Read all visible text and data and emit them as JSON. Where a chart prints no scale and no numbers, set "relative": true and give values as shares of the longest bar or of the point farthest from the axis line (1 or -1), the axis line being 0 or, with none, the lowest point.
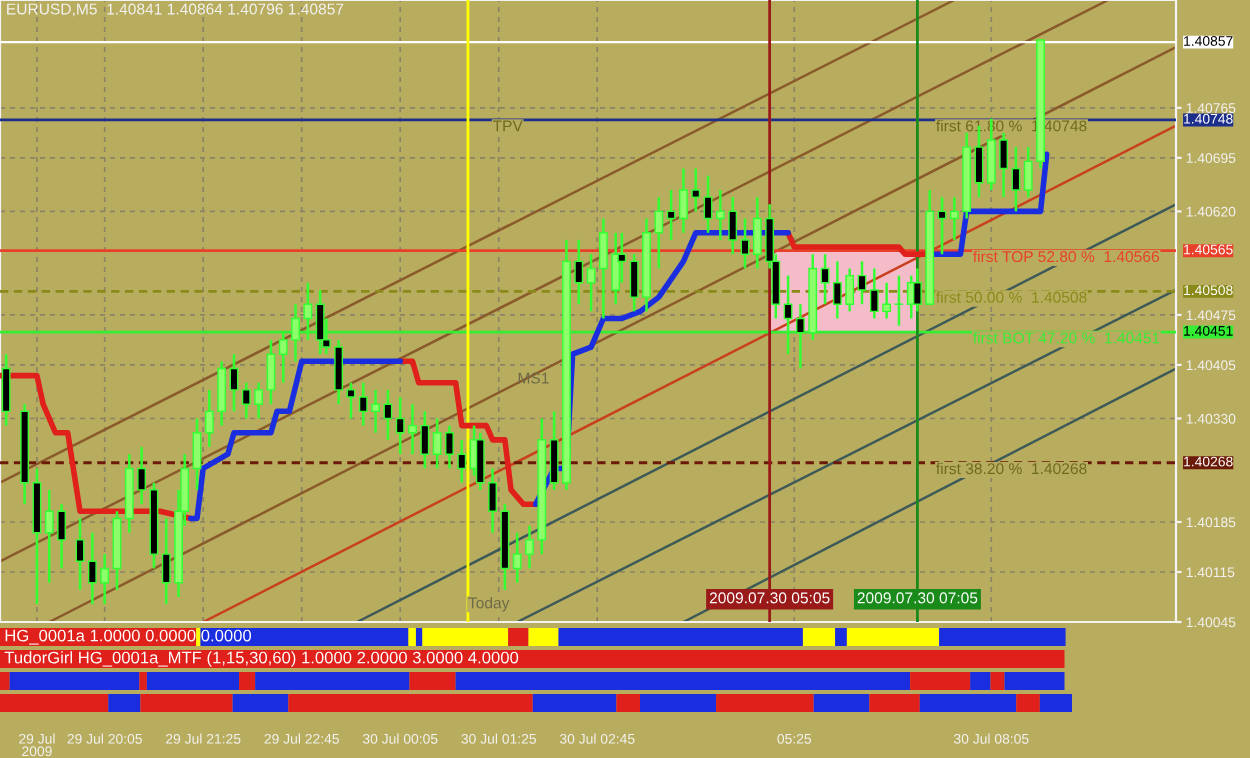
{
  "chart_data": [
    {
      "type": "candlestick",
      "title": "EURUSD,M5  1.40841 1.40864 1.40796 1.40857",
      "x": [
        "2009-07-29T18:45",
        "2009-07-29T19:00",
        "2009-07-29T19:10",
        "2009-07-29T19:20",
        "2009-07-29T19:30",
        "2009-07-29T19:45",
        "2009-07-29T19:55",
        "2009-07-29T20:05",
        "2009-07-29T20:15",
        "2009-07-29T20:25",
        "2009-07-29T20:35",
        "2009-07-29T20:45",
        "2009-07-29T20:55",
        "2009-07-29T21:05",
        "2009-07-29T21:10",
        "2009-07-29T21:20",
        "2009-07-29T21:30",
        "2009-07-29T21:40",
        "2009-07-29T21:50",
        "2009-07-29T22:00",
        "2009-07-29T22:10",
        "2009-07-29T22:20",
        "2009-07-29T22:30",
        "2009-07-29T22:40",
        "2009-07-29T22:50",
        "2009-07-29T23:00",
        "2009-07-29T23:05",
        "2009-07-29T23:15",
        "2009-07-29T23:25",
        "2009-07-29T23:35",
        "2009-07-29T23:45",
        "2009-07-29T23:55",
        "2009-07-30T00:05",
        "2009-07-30T00:15",
        "2009-07-30T00:25",
        "2009-07-30T00:35",
        "2009-07-30T00:45",
        "2009-07-30T00:55",
        "2009-07-30T01:05",
        "2009-07-30T01:10",
        "2009-07-30T01:20",
        "2009-07-30T01:30",
        "2009-07-30T01:40",
        "2009-07-30T01:50",
        "2009-07-30T02:00",
        "2009-07-30T02:10",
        "2009-07-30T02:20",
        "2009-07-30T02:30",
        "2009-07-30T02:40",
        "2009-07-30T02:50",
        "2009-07-30T03:00",
        "2009-07-30T03:05",
        "2009-07-30T03:15",
        "2009-07-30T03:25",
        "2009-07-30T03:35",
        "2009-07-30T03:45",
        "2009-07-30T03:55",
        "2009-07-30T04:05",
        "2009-07-30T04:15",
        "2009-07-30T04:25",
        "2009-07-30T04:35",
        "2009-07-30T04:45",
        "2009-07-30T04:55",
        "2009-07-30T05:05",
        "2009-07-30T05:10",
        "2009-07-30T05:20",
        "2009-07-30T05:30",
        "2009-07-30T05:40",
        "2009-07-30T05:50",
        "2009-07-30T06:00",
        "2009-07-30T06:10",
        "2009-07-30T06:20",
        "2009-07-30T06:30",
        "2009-07-30T06:40",
        "2009-07-30T06:50",
        "2009-07-30T07:00",
        "2009-07-30T07:05",
        "2009-07-30T07:15",
        "2009-07-30T07:25",
        "2009-07-30T07:35",
        "2009-07-30T07:45",
        "2009-07-30T07:55",
        "2009-07-30T08:05",
        "2009-07-30T08:15",
        "2009-07-30T08:25",
        "2009-07-30T08:35",
        "2009-07-30T08:45"
      ],
      "ohlc": [
        [
          1.404,
          1.4042,
          1.4032,
          1.4034
        ],
        [
          1.4034,
          1.4035,
          1.4021,
          1.4024
        ],
        [
          1.4024,
          1.4026,
          1.4007,
          1.4017
        ],
        [
          1.4017,
          1.4023,
          1.401,
          1.402
        ],
        [
          1.402,
          1.4021,
          1.4012,
          1.4016
        ],
        [
          1.4016,
          1.4019,
          1.4009,
          1.4013
        ],
        [
          1.4013,
          1.4017,
          1.4007,
          1.401
        ],
        [
          1.401,
          1.4014,
          1.4007,
          1.4012
        ],
        [
          1.4012,
          1.402,
          1.4009,
          1.4019
        ],
        [
          1.4019,
          1.4028,
          1.4017,
          1.4026
        ],
        [
          1.4026,
          1.4029,
          1.4021,
          1.4023
        ],
        [
          1.4023,
          1.4024,
          1.4012,
          1.4014
        ],
        [
          1.4014,
          1.4019,
          1.4007,
          1.401
        ],
        [
          1.401,
          1.4023,
          1.4008,
          1.402
        ],
        [
          1.402,
          1.4028,
          1.4018,
          1.4026
        ],
        [
          1.4026,
          1.4033,
          1.4023,
          1.4031
        ],
        [
          1.4031,
          1.4037,
          1.4029,
          1.4034
        ],
        [
          1.4034,
          1.4041,
          1.4032,
          1.404
        ],
        [
          1.404,
          1.4042,
          1.4034,
          1.4037
        ],
        [
          1.4037,
          1.4038,
          1.4033,
          1.4035
        ],
        [
          1.4035,
          1.4038,
          1.4033,
          1.4037
        ],
        [
          1.4037,
          1.4044,
          1.4035,
          1.4042
        ],
        [
          1.4042,
          1.4045,
          1.4038,
          1.4044
        ],
        [
          1.4044,
          1.4049,
          1.4041,
          1.4047
        ],
        [
          1.4047,
          1.4052,
          1.4044,
          1.4049
        ],
        [
          1.4049,
          1.4051,
          1.4042,
          1.4044
        ],
        [
          1.4044,
          1.4047,
          1.4042,
          1.4043
        ],
        [
          1.4043,
          1.4044,
          1.4035,
          1.4037
        ],
        [
          1.4037,
          1.4038,
          1.4033,
          1.4036
        ],
        [
          1.4036,
          1.4038,
          1.4032,
          1.4034
        ],
        [
          1.4034,
          1.4037,
          1.4031,
          1.4035
        ],
        [
          1.4035,
          1.4037,
          1.403,
          1.4033
        ],
        [
          1.4033,
          1.4036,
          1.4028,
          1.4031
        ],
        [
          1.4031,
          1.4035,
          1.4028,
          1.4032
        ],
        [
          1.4032,
          1.4034,
          1.4026,
          1.4028
        ],
        [
          1.4028,
          1.4033,
          1.4026,
          1.4031
        ],
        [
          1.4031,
          1.4032,
          1.4026,
          1.4028
        ],
        [
          1.4028,
          1.403,
          1.4024,
          1.4026
        ],
        [
          1.4026,
          1.4032,
          1.4025,
          1.403
        ],
        [
          1.403,
          1.4031,
          1.4023,
          1.4024
        ],
        [
          1.4024,
          1.4026,
          1.4017,
          1.402
        ],
        [
          1.402,
          1.4021,
          1.4009,
          1.4012
        ],
        [
          1.4012,
          1.4017,
          1.401,
          1.4014
        ],
        [
          1.4014,
          1.4018,
          1.4012,
          1.4016
        ],
        [
          1.4016,
          1.4033,
          1.4014,
          1.403
        ],
        [
          1.403,
          1.4034,
          1.4023,
          1.4024
        ],
        [
          1.4024,
          1.4058,
          1.4023,
          1.4055
        ],
        [
          1.4055,
          1.4058,
          1.4049,
          1.4052
        ],
        [
          1.4052,
          1.4056,
          1.4048,
          1.4054
        ],
        [
          1.4054,
          1.4061,
          1.4047,
          1.4059
        ],
        [
          1.4051,
          1.4059,
          1.4049,
          1.4056
        ],
        [
          1.4056,
          1.4059,
          1.4052,
          1.4055
        ],
        [
          1.4055,
          1.4056,
          1.4048,
          1.405
        ],
        [
          1.405,
          1.4061,
          1.4048,
          1.4059
        ],
        [
          1.4059,
          1.4064,
          1.4054,
          1.4062
        ],
        [
          1.4062,
          1.4065,
          1.4058,
          1.4061
        ],
        [
          1.4061,
          1.4068,
          1.4059,
          1.4065
        ],
        [
          1.4065,
          1.4068,
          1.4062,
          1.4064
        ],
        [
          1.4064,
          1.4067,
          1.4059,
          1.4061
        ],
        [
          1.4061,
          1.4065,
          1.4058,
          1.4062
        ],
        [
          1.4062,
          1.4064,
          1.4056,
          1.4058
        ],
        [
          1.4058,
          1.4061,
          1.4054,
          1.4056
        ],
        [
          1.4056,
          1.4064,
          1.4054,
          1.4061
        ],
        [
          1.4061,
          1.4063,
          1.4054,
          1.4055
        ],
        [
          1.4055,
          1.4056,
          1.4047,
          1.4049
        ],
        [
          1.4049,
          1.4053,
          1.4042,
          1.4047
        ],
        [
          1.4047,
          1.4049,
          1.404,
          1.4045
        ],
        [
          1.4045,
          1.4056,
          1.4044,
          1.4054
        ],
        [
          1.4054,
          1.4056,
          1.4049,
          1.4052
        ],
        [
          1.4052,
          1.4055,
          1.4047,
          1.4049
        ],
        [
          1.4049,
          1.4054,
          1.4048,
          1.4053
        ],
        [
          1.4053,
          1.4055,
          1.4049,
          1.4051
        ],
        [
          1.4051,
          1.4054,
          1.4047,
          1.4048
        ],
        [
          1.4048,
          1.4052,
          1.4047,
          1.4049
        ],
        [
          1.4049,
          1.4053,
          1.4046,
          1.4049
        ],
        [
          1.4049,
          1.4053,
          1.4047,
          1.4052
        ],
        [
          1.4052,
          1.4054,
          1.4048,
          1.4049
        ],
        [
          1.4049,
          1.4065,
          1.4049,
          1.4062
        ],
        [
          1.4062,
          1.4064,
          1.4056,
          1.4061
        ],
        [
          1.4061,
          1.4064,
          1.4058,
          1.4062
        ],
        [
          1.4062,
          1.4073,
          1.4061,
          1.4071
        ],
        [
          1.4071,
          1.4074,
          1.4064,
          1.4066
        ],
        [
          1.4066,
          1.4075,
          1.4065,
          1.4072
        ],
        [
          1.4072,
          1.4073,
          1.4064,
          1.4068
        ],
        [
          1.4068,
          1.4071,
          1.4062,
          1.4065
        ],
        [
          1.4065,
          1.4071,
          1.4064,
          1.4069
        ],
        [
          1.4069,
          1.4086,
          1.4068,
          1.4086
        ]
      ],
      "series": [
        {
          "type": "line",
          "color": "#e0201a",
          "x": [
            "2009-07-29T18:40",
            "2009-07-29T19:10",
            "2009-07-29T19:15",
            "2009-07-29T19:25",
            "2009-07-29T19:35",
            "2009-07-29T19:45",
            "2009-07-29T19:50",
            "2009-07-29T20:50",
            "2009-07-29T21:15",
            "2009-07-29T22:40",
            "2009-07-30T00:05",
            "2009-07-30T00:15",
            "2009-07-30T00:20",
            "2009-07-30T00:50",
            "2009-07-30T00:55",
            "2009-07-30T01:15",
            "2009-07-30T01:20",
            "2009-07-30T01:30",
            "2009-07-30T01:35",
            "2009-07-30T01:45",
            "2009-07-30T01:55",
            "2009-07-30T03:30",
            "2009-07-30T05:20",
            "2009-07-30T05:25",
            "2009-07-30T06:50",
            "2009-07-30T06:55",
            "2009-07-30T07:15"
          ],
          "values": [
            1.4039,
            1.4039,
            1.4035,
            1.4031,
            1.4031,
            1.402,
            1.402,
            1.402,
            1.4019,
            null,
            1.4041,
            1.4041,
            1.4038,
            1.4038,
            1.4032,
            1.4032,
            1.403,
            1.403,
            1.4023,
            1.4021,
            1.4021,
            null,
            1.4059,
            1.4057,
            1.4057,
            1.4056,
            1.4056
          ]
        },
        {
          "type": "line",
          "color": "#1a2ee0",
          "x": [
            "2009-07-29T21:15",
            "2009-07-29T21:20",
            "2009-07-29T21:25",
            "2009-07-29T21:45",
            "2009-07-29T21:50",
            "2009-07-29T22:20",
            "2009-07-29T22:25",
            "2009-07-29T22:35",
            "2009-07-29T22:45",
            "2009-07-30T00:05",
            "2009-07-30T01:05",
            "2009-07-30T01:55",
            "2009-07-30T02:10",
            "2009-07-30T02:20",
            "2009-07-30T02:25",
            "2009-07-30T02:40",
            "2009-07-30T02:50",
            "2009-07-30T03:05",
            "2009-07-30T03:20",
            "2009-07-30T03:35",
            "2009-07-30T03:55",
            "2009-07-30T04:05",
            "2009-07-30T04:25",
            "2009-07-30T05:20",
            "2009-07-30T06:10",
            "2009-07-30T07:15",
            "2009-07-30T07:40",
            "2009-07-30T07:45",
            "2009-07-30T08:45",
            "2009-07-30T08:50"
          ],
          "values": [
            1.4019,
            1.4019,
            1.4026,
            1.4028,
            1.4031,
            1.4031,
            1.4034,
            1.4034,
            1.4041,
            1.4041,
            null,
            1.4021,
            1.4026,
            1.4026,
            1.4042,
            1.4043,
            1.4047,
            1.4047,
            1.4048,
            1.405,
            1.4055,
            1.4059,
            1.4059,
            1.4059,
            null,
            1.4056,
            1.4056,
            1.4062,
            1.4062,
            1.407
          ]
        },
        {
          "type": "line",
          "color": "#8b5a2b",
          "x": [
            "2009-07-29T18:40",
            "2009-07-30T07:35"
          ],
          "values": [
            1.4024,
            1.40916
          ]
        },
        {
          "type": "line",
          "color": "#8b5a2b",
          "x": [
            "2009-07-29T18:40",
            "2009-07-30T09:40"
          ],
          "values": [
            1.4013,
            1.40916
          ]
        },
        {
          "type": "line",
          "color": "#8b5a2b",
          "x": [
            "2009-07-29T19:20",
            "2009-07-30T10:35"
          ],
          "values": [
            1.40045,
            1.4085
          ]
        },
        {
          "type": "line",
          "color": "#c8401e",
          "x": [
            "2009-07-29T21:25",
            "2009-07-30T10:35"
          ],
          "values": [
            1.40045,
            1.4074
          ]
        },
        {
          "type": "line",
          "color": "#3e5a58",
          "x": [
            "2009-07-29T23:30",
            "2009-07-30T10:35"
          ],
          "values": [
            1.40045,
            1.4063
          ]
        },
        {
          "type": "line",
          "color": "#3e5a58",
          "x": [
            "2009-07-30T01:40",
            "2009-07-30T10:35"
          ],
          "values": [
            1.40045,
            1.4051
          ]
        },
        {
          "type": "line",
          "color": "#3e5a58",
          "x": [
            "2009-07-30T03:55",
            "2009-07-30T10:35"
          ],
          "values": [
            1.40045,
            1.404
          ]
        }
      ],
      "xlim": [
        "2009-07-29T18:40",
        "2009-07-30T10:35"
      ],
      "ylim": [
        1.40045,
        1.40916
      ],
      "xticks": [
        {
          "value": "2009-07-29T19:10",
          "label": "29 Jul 2009"
        },
        {
          "value": "2009-07-29T20:05",
          "label": "29 Jul 20:05"
        },
        {
          "value": "2009-07-29T21:25",
          "label": "29 Jul 21:25"
        },
        {
          "value": "2009-07-29T22:45",
          "label": "29 Jul 22:45"
        },
        {
          "value": "2009-07-30T00:05",
          "label": "30 Jul 00:05"
        },
        {
          "value": "2009-07-30T01:25",
          "label": "30 Jul 01:25"
        },
        {
          "value": "2009-07-30T02:45",
          "label": "30 Jul 02:45"
        },
        {
          "value": "2009-07-30T05:25",
          "label": "05:25"
        },
        {
          "value": "2009-07-30T08:05",
          "label": "30 Jul 08:05"
        }
      ],
      "yticks": [
        {
          "value": 1.40765,
          "label": "1.40765"
        },
        {
          "value": 1.40695,
          "label": "1.40695"
        },
        {
          "value": 1.4062,
          "label": "1.40620"
        },
        {
          "value": 1.40475,
          "label": "1.40475"
        },
        {
          "value": 1.40405,
          "label": "1.40405"
        },
        {
          "value": 1.4033,
          "label": "1.40330"
        },
        {
          "value": 1.40185,
          "label": "1.40185"
        },
        {
          "value": 1.40115,
          "label": "1.40115"
        },
        {
          "value": 1.40045,
          "label": "1.40045"
        }
      ],
      "grid": true,
      "ref_lines": [
        {
          "axis": "y",
          "value": 1.40857,
          "label": "1.40857",
          "color": "#ffffff",
          "line_style": "solid"
        },
        {
          "axis": "y",
          "value": 1.40748,
          "label": "1.40748",
          "color": "#1c2f8c",
          "line_style": "solid"
        },
        {
          "axis": "y",
          "value": 1.40565,
          "label": "1.40565",
          "color": "#e8402a",
          "line_style": "solid"
        },
        {
          "axis": "y",
          "value": 1.40508,
          "label": "1.40508",
          "color": "#8a8a1a",
          "line_style": "dashed"
        },
        {
          "axis": "y",
          "value": 1.40451,
          "label": "1.40451",
          "color": "#33ee33",
          "line_style": "solid"
        },
        {
          "axis": "y",
          "value": 1.40268,
          "label": "1.40268",
          "color": "#6b1a0a",
          "line_style": "dashed"
        },
        {
          "axis": "x",
          "value": "2009-07-30T01:00",
          "color": "#ffff00",
          "line_style": "solid"
        },
        {
          "axis": "x",
          "value": "2009-07-30T05:05",
          "label": "2009.07.30 05:05",
          "color": "#9a1a1a",
          "line_style": "solid"
        },
        {
          "axis": "x",
          "value": "2009-07-30T07:05",
          "label": "2009.07.30 07:05",
          "color": "#1a8a1a",
          "line_style": "solid"
        }
      ],
      "annotations": [
        {
          "text": "first 61.80 %  1.40748",
          "x": "2009-07-30T07:20",
          "y": 1.40748
        },
        {
          "text": "first TOP 52.80 %  1.40566",
          "x": "2009-07-30T07:50",
          "y": 1.40565
        },
        {
          "text": "first 50.00 %  1.40508",
          "x": "2009-07-30T07:20",
          "y": 1.40508
        },
        {
          "text": "first BOT 47.20 %  1.40451",
          "x": "2009-07-30T07:50",
          "y": 1.40451
        },
        {
          "text": "first 38.20 %  1.40268",
          "x": "2009-07-30T07:20",
          "y": 1.40268
        },
        {
          "text": "TPV",
          "x": "2009-07-30T01:20",
          "y": 1.40748
        },
        "MS1",
        {
          "text": "Today",
          "x": "2009-07-30T01:00",
          "y": 1.4008
        }
      ]
    },
    {
      "type": "bar",
      "orientation": "horizontal",
      "stacked": true,
      "relative": true,
      "categories": [
        null,
        null,
        null,
        null
      ],
      "annotations": [
        "HG_0001a 1.0000 0.0000 0.0000",
        "TudorGirl HG_0001a_MTF (1,15,30,60) 1.0000 2.0000 3.0000 4.0000"
      ],
      "series": [
        {
          "values": [
            0.183,
            0.993,
            0.009,
            0.101
          ],
          "colors": [
            "#e0201a",
            "#e0201a",
            "#e0201a",
            "#e0201a"
          ]
        },
        {
          "values": [
            0.004,
            null,
            0.121,
            0.03
          ],
          "colors": [
            "#ffff00",
            null,
            "#1a2ee0",
            "#1a2ee0"
          ]
        },
        {
          "values": [
            0.194,
            null,
            0.007,
            0.086
          ],
          "colors": [
            "#1a2ee0",
            null,
            "#e0201a",
            "#e0201a"
          ]
        },
        {
          "values": [
            0.007,
            null,
            0.086,
            0.052
          ],
          "colors": [
            "#ffff00",
            null,
            "#1a2ee0",
            "#1a2ee0"
          ]
        },
        {
          "values": [
            0.006,
            null,
            0.015,
            0.228
          ],
          "colors": [
            "#1a2ee0",
            null,
            "#e0201a",
            "#e0201a"
          ]
        },
        {
          "values": [
            0.08,
            null,
            0.144,
            0.078
          ],
          "colors": [
            "#ffff00",
            null,
            "#1a2ee0",
            "#1a2ee0"
          ]
        },
        {
          "values": [
            0.019,
            null,
            0.043,
            0.022
          ],
          "colors": [
            "#e0201a",
            null,
            "#e0201a",
            "#e0201a"
          ]
        },
        {
          "values": [
            0.028,
            null,
            0.424,
            0.071
          ],
          "colors": [
            "#ffff00",
            null,
            "#1a2ee0",
            "#1a2ee0"
          ]
        },
        {
          "values": [
            0.228,
            null,
            0.056,
            0.091
          ],
          "colors": [
            "#1a2ee0",
            null,
            "#e0201a",
            "#e0201a"
          ]
        },
        {
          "values": [
            0.03,
            null,
            0.019,
            0.052
          ],
          "colors": [
            "#ffff00",
            null,
            "#1a2ee0",
            "#1a2ee0"
          ]
        },
        {
          "values": [
            0.011,
            null,
            0.013,
            0.047
          ],
          "colors": [
            "#1a2ee0",
            null,
            "#e0201a",
            "#e0201a"
          ]
        },
        {
          "values": [
            0.086,
            null,
            0.056,
            0.09
          ],
          "colors": [
            "#ffff00",
            null,
            "#1a2ee0",
            "#1a2ee0"
          ]
        },
        {
          "values": [
            0.118,
            null,
            null,
            0.022
          ],
          "colors": [
            "#1a2ee0",
            null,
            null,
            "#e0201a"
          ]
        },
        {
          "values": [
            null,
            null,
            null,
            0.03
          ],
          "colors": [
            null,
            null,
            null,
            "#1a2ee0"
          ]
        }
      ]
    }
  ]
}
